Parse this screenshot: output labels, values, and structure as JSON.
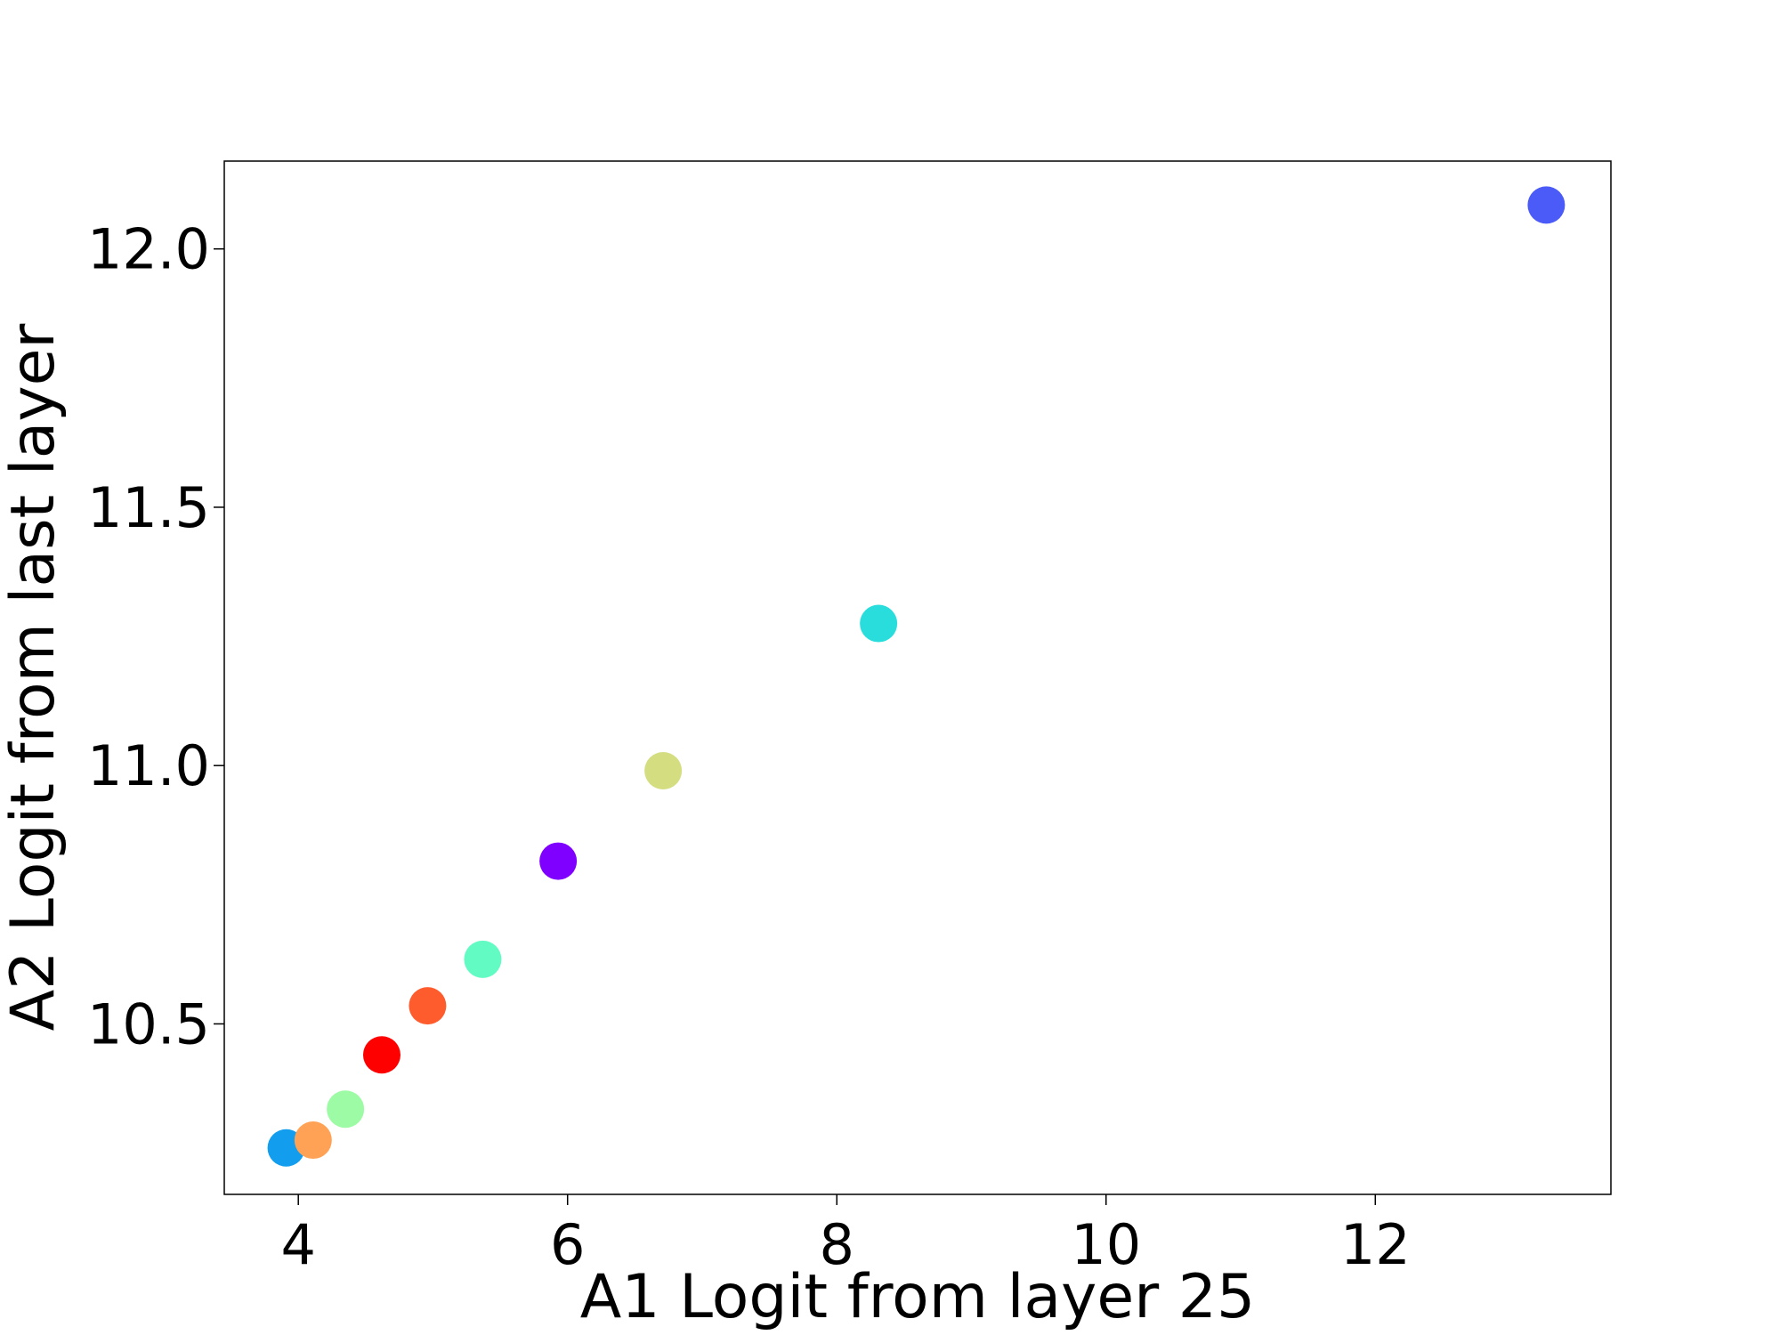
{
  "chart_data": {
    "type": "scatter",
    "title": "",
    "xlabel": "A1 Logit from layer 25",
    "ylabel": "A2 Logit from last layer",
    "xlim": [
      3.45,
      13.75
    ],
    "ylim": [
      10.17,
      12.17
    ],
    "xticks": [
      4,
      6,
      8,
      10,
      12
    ],
    "xtick_labels": [
      "4",
      "6",
      "8",
      "10",
      "12"
    ],
    "yticks": [
      10.5,
      11.0,
      11.5,
      12.0
    ],
    "ytick_labels": [
      "10.5",
      "11.0",
      "11.5",
      "12.0"
    ],
    "grid": false,
    "legend": "none",
    "points": [
      {
        "x": 5.93,
        "y": 10.815,
        "color": "#8000ff"
      },
      {
        "x": 13.27,
        "y": 12.085,
        "color": "#4b5bf8"
      },
      {
        "x": 3.91,
        "y": 10.26,
        "color": "#129dee"
      },
      {
        "x": 8.31,
        "y": 11.275,
        "color": "#2adddd"
      },
      {
        "x": 5.37,
        "y": 10.625,
        "color": "#62fbc4"
      },
      {
        "x": 4.35,
        "y": 10.335,
        "color": "#9cfba4"
      },
      {
        "x": 6.71,
        "y": 10.99,
        "color": "#d4dd80"
      },
      {
        "x": 4.11,
        "y": 10.275,
        "color": "#ffa256"
      },
      {
        "x": 4.96,
        "y": 10.535,
        "color": "#ff5c2e"
      },
      {
        "x": 4.62,
        "y": 10.44,
        "color": "#ff0000"
      }
    ]
  }
}
